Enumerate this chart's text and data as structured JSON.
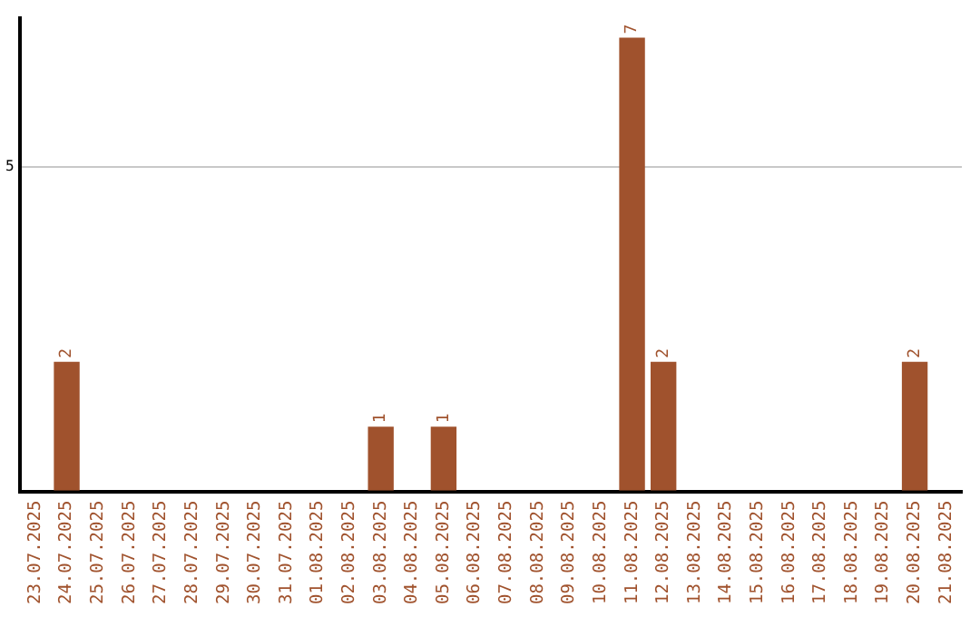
{
  "chart_data": {
    "type": "bar",
    "categories": [
      "23.07.2025",
      "24.07.2025",
      "25.07.2025",
      "26.07.2025",
      "27.07.2025",
      "28.07.2025",
      "29.07.2025",
      "30.07.2025",
      "31.07.2025",
      "01.08.2025",
      "02.08.2025",
      "03.08.2025",
      "04.08.2025",
      "05.08.2025",
      "06.08.2025",
      "07.08.2025",
      "08.08.2025",
      "09.08.2025",
      "10.08.2025",
      "11.08.2025",
      "12.08.2025",
      "13.08.2025",
      "14.08.2025",
      "15.08.2025",
      "16.08.2025",
      "17.08.2025",
      "18.08.2025",
      "19.08.2025",
      "20.08.2025",
      "21.08.2025"
    ],
    "values": [
      0,
      2,
      0,
      0,
      0,
      0,
      0,
      0,
      0,
      0,
      0,
      1,
      0,
      1,
      0,
      0,
      0,
      0,
      0,
      7,
      2,
      0,
      0,
      0,
      0,
      0,
      0,
      0,
      2,
      0
    ],
    "color": "#a0522d",
    "ylim": [
      0,
      7.3
    ],
    "yticks": [
      {
        "value": 0,
        "label": null
      },
      5
    ],
    "grid": "y",
    "value_labels": [
      null,
      "2",
      null,
      null,
      null,
      null,
      null,
      null,
      null,
      null,
      null,
      "1",
      null,
      "1",
      null,
      null,
      null,
      null,
      null,
      "7",
      "2",
      null,
      null,
      null,
      null,
      null,
      null,
      null,
      "2",
      null
    ]
  }
}
